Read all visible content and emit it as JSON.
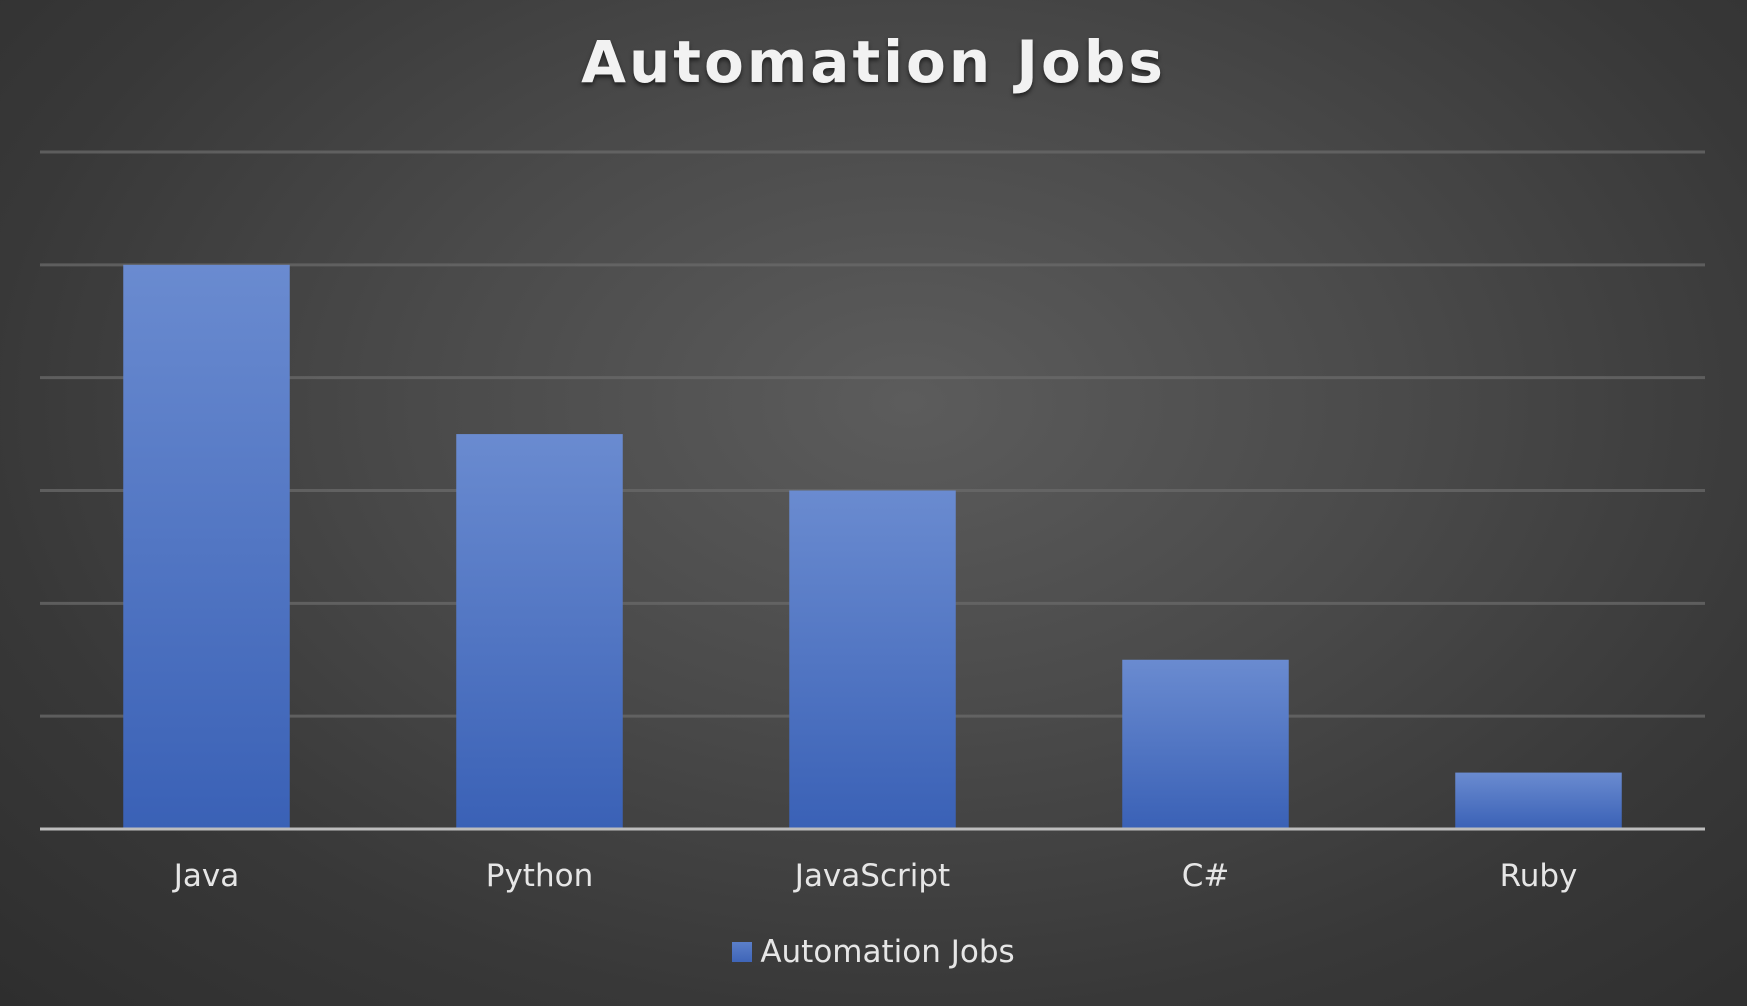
{
  "chart_data": {
    "type": "bar",
    "title": "Automation Jobs",
    "xlabel": "",
    "ylabel": "",
    "categories": [
      "Java",
      "Python",
      "JavaScript",
      "C#",
      "Ruby"
    ],
    "series": [
      {
        "name": "Automation Jobs",
        "values": [
          5,
          3.5,
          3,
          1.5,
          0.5
        ]
      }
    ],
    "ylim": [
      0,
      6
    ],
    "grid": true,
    "legend": "bottom",
    "colors": {
      "bar_top": "#6a8bd0",
      "bar_bottom": "#3a61b6",
      "gridline": "#6a6a6a",
      "axis": "#bdbdbd"
    }
  }
}
